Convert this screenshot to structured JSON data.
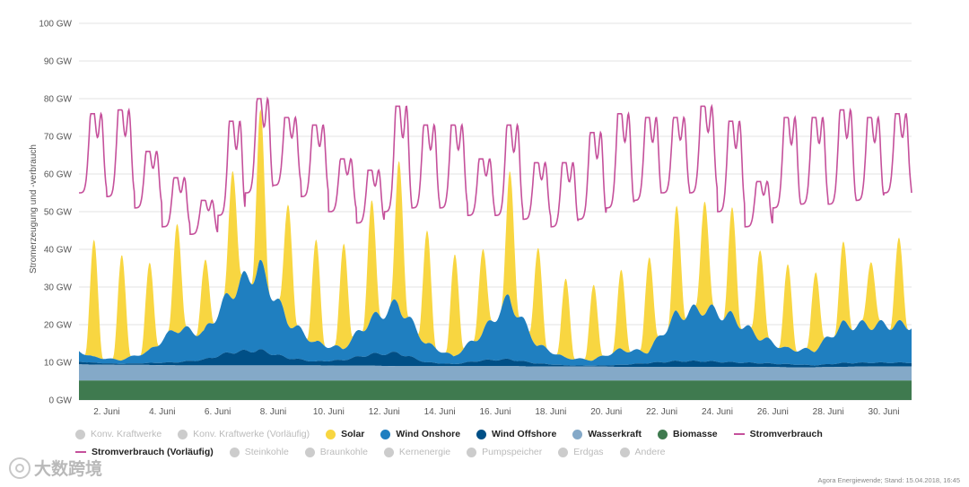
{
  "chart_data": {
    "type": "area",
    "ylabel": "Stromerzeugung und -verbrauch",
    "unit": "GW",
    "y_ticks": [
      "0 GW",
      "10 GW",
      "20 GW",
      "30 GW",
      "40 GW",
      "50 GW",
      "60 GW",
      "70 GW",
      "80 GW",
      "90 GW",
      "100 GW"
    ],
    "ylim": [
      0,
      100
    ],
    "xlim_days": [
      1,
      31
    ],
    "x_ticks": [
      {
        "day": 2,
        "label": "2. Juni"
      },
      {
        "day": 4,
        "label": "4. Juni"
      },
      {
        "day": 6,
        "label": "6. Juni"
      },
      {
        "day": 8,
        "label": "8. Juni"
      },
      {
        "day": 10,
        "label": "10. Juni"
      },
      {
        "day": 12,
        "label": "12. Juni"
      },
      {
        "day": 14,
        "label": "14. Juni"
      },
      {
        "day": 16,
        "label": "16. Juni"
      },
      {
        "day": 18,
        "label": "18. Juni"
      },
      {
        "day": 20,
        "label": "20. Juni"
      },
      {
        "day": 22,
        "label": "22. Juni"
      },
      {
        "day": 24,
        "label": "24. Juni"
      },
      {
        "day": 26,
        "label": "26. Juni"
      },
      {
        "day": 28,
        "label": "28. Juni"
      },
      {
        "day": 30,
        "label": "30. Juni"
      }
    ],
    "stack_order": [
      "Biomasse",
      "Wasserkraft",
      "Wind Offshore",
      "Wind Onshore",
      "Solar"
    ],
    "colors": {
      "Biomasse": "#3f7a4f",
      "Wasserkraft": "#84a9c8",
      "Wind Offshore": "#004f86",
      "Wind Onshore": "#1f7fc0",
      "Solar": "#f8d641",
      "Stromverbrauch": "#c5509b"
    },
    "series": [
      {
        "name": "Biomasse",
        "unit": "GW",
        "daily": [
          5.2,
          5.2,
          5.2,
          5.2,
          5.2,
          5.2,
          5.2,
          5.2,
          5.2,
          5.2,
          5.2,
          5.2,
          5.2,
          5.2,
          5.2,
          5.2,
          5.2,
          5.2,
          5.2,
          5.2,
          5.2,
          5.2,
          5.2,
          5.2,
          5.2,
          5.2,
          5.2,
          5.2,
          5.2,
          5.2
        ]
      },
      {
        "name": "Wasserkraft",
        "unit": "GW",
        "daily": [
          4.3,
          4.2,
          4.1,
          4.1,
          4.0,
          4.0,
          4.0,
          4.0,
          4.0,
          4.0,
          3.9,
          3.9,
          3.8,
          3.8,
          3.8,
          3.8,
          3.8,
          3.7,
          3.7,
          3.7,
          3.6,
          3.6,
          3.6,
          3.6,
          3.6,
          3.6,
          3.5,
          3.5,
          3.6,
          3.7
        ]
      },
      {
        "name": "Wind Offshore",
        "unit": "GW",
        "daily": [
          1.0,
          0.5,
          0.3,
          0.5,
          0.8,
          1.5,
          3.5,
          4.0,
          2.0,
          1.0,
          1.5,
          3.0,
          3.5,
          1.0,
          0.5,
          1.5,
          1.8,
          0.8,
          0.3,
          0.2,
          0.5,
          1.0,
          1.5,
          1.5,
          1.2,
          1.0,
          0.8,
          0.5,
          1.0,
          1.0
        ]
      },
      {
        "name": "Wind Onshore",
        "unit": "GW",
        "daily": [
          4.0,
          1.5,
          1.0,
          3.0,
          9.0,
          7.0,
          16.0,
          22.0,
          10.0,
          5.0,
          3.0,
          9.0,
          13.0,
          5.0,
          2.0,
          7.0,
          16.0,
          5.0,
          2.0,
          1.5,
          4.0,
          3.0,
          12.0,
          14.0,
          12.0,
          7.0,
          4.0,
          4.0,
          10.0,
          10.0
        ]
      },
      {
        "name": "Solar",
        "unit": "GW",
        "peak": [
          31,
          28,
          23,
          29,
          18,
          34,
          40,
          32,
          27,
          28,
          31,
          39,
          30,
          27,
          22,
          34,
          26,
          21,
          20,
          21,
          25,
          28,
          30,
          28,
          24,
          22,
          21,
          21,
          18,
          22
        ]
      },
      {
        "name": "Stromverbrauch",
        "unit": "GW",
        "type": "line",
        "peak": [
          76,
          77,
          66,
          59,
          53,
          74,
          80,
          75,
          73,
          64,
          61,
          78,
          73,
          73,
          64,
          73,
          63,
          63,
          71,
          76,
          75,
          75,
          78,
          74,
          58,
          75,
          75,
          77,
          75,
          76
        ],
        "trough": [
          55,
          54,
          51,
          46,
          44,
          49,
          55,
          57,
          54,
          50,
          47,
          50,
          51,
          51,
          49,
          49,
          48,
          46,
          48,
          51,
          53,
          55,
          55,
          50,
          46,
          51,
          52,
          52,
          53,
          55
        ]
      }
    ]
  },
  "legend": {
    "items": [
      {
        "label": "Konv. Kraftwerke",
        "color": "#cccccc",
        "active": false,
        "symbol": "dot"
      },
      {
        "label": "Konv. Kraftwerke (Vorläufig)",
        "color": "#cccccc",
        "active": false,
        "symbol": "dot"
      },
      {
        "label": "Solar",
        "color": "#f8d641",
        "active": true,
        "symbol": "dot"
      },
      {
        "label": "Wind Onshore",
        "color": "#1f7fc0",
        "active": true,
        "symbol": "dot"
      },
      {
        "label": "Wind Offshore",
        "color": "#004f86",
        "active": true,
        "symbol": "dot"
      },
      {
        "label": "Wasserkraft",
        "color": "#84a9c8",
        "active": true,
        "symbol": "dot"
      },
      {
        "label": "Biomasse",
        "color": "#3f7a4f",
        "active": true,
        "symbol": "dot"
      },
      {
        "label": "Stromverbrauch",
        "color": "#c5509b",
        "active": true,
        "symbol": "line"
      },
      {
        "label": "Stromverbrauch (Vorläufig)",
        "color": "#c5509b",
        "active": true,
        "symbol": "dash"
      },
      {
        "label": "Steinkohle",
        "color": "#cccccc",
        "active": false,
        "symbol": "dot"
      },
      {
        "label": "Braunkohle",
        "color": "#cccccc",
        "active": false,
        "symbol": "dot"
      },
      {
        "label": "Kernenergie",
        "color": "#cccccc",
        "active": false,
        "symbol": "dot"
      },
      {
        "label": "Pumpspeicher",
        "color": "#cccccc",
        "active": false,
        "symbol": "dot"
      },
      {
        "label": "Erdgas",
        "color": "#cccccc",
        "active": false,
        "symbol": "dot"
      },
      {
        "label": "Andere",
        "color": "#cccccc",
        "active": false,
        "symbol": "dot"
      }
    ]
  },
  "watermark": {
    "text": "大数跨境"
  },
  "credits": {
    "text": "Agora Energiewende; Stand: 15.04.2018, 16:45"
  }
}
